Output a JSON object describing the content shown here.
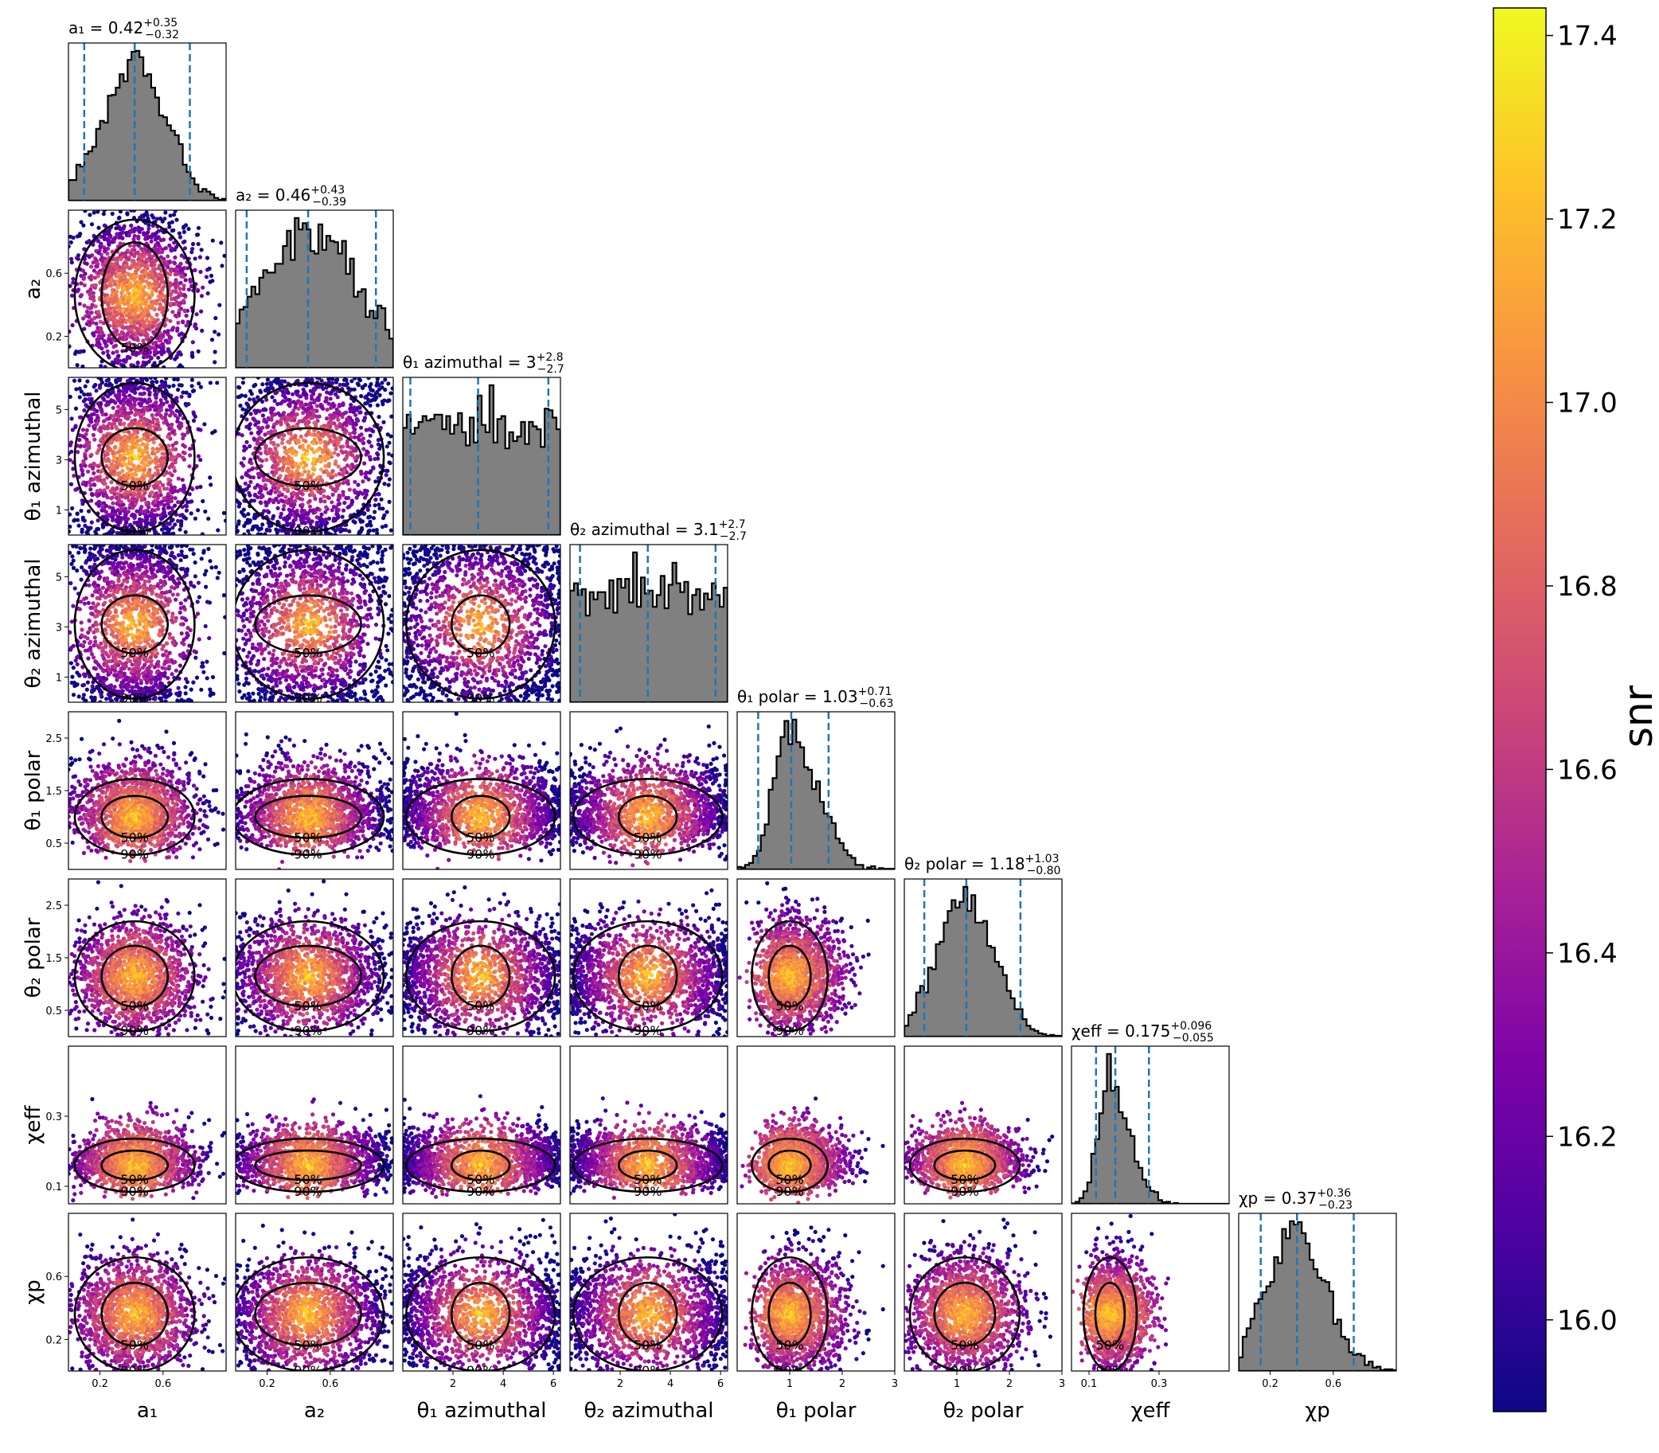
{
  "chart_data": {
    "type": "corner",
    "parameters": [
      {
        "key": "a1",
        "label": "a₁",
        "title": "a₁ = 0.42",
        "median": 0.42,
        "plus": 0.35,
        "minus": 0.32,
        "plus_text": "+0.35",
        "minus_text": "−0.32",
        "range": [
          0.0,
          1.0
        ],
        "ticks": [
          0.2,
          0.6
        ],
        "tick_labels": [
          "0.2",
          "0.6"
        ],
        "dist": "bell",
        "mu": 0.42,
        "sigma": 0.2
      },
      {
        "key": "a2",
        "label": "a₂",
        "title": "a₂ = 0.46",
        "median": 0.46,
        "plus": 0.43,
        "minus": 0.39,
        "plus_text": "+0.43",
        "minus_text": "−0.39",
        "range": [
          0.0,
          1.0
        ],
        "ticks": [
          0.2,
          0.6
        ],
        "tick_labels": [
          "0.2",
          "0.6"
        ],
        "dist": "broad",
        "mu": 0.46,
        "sigma": 0.32
      },
      {
        "key": "theta1_az",
        "label": "θ₁ azimuthal",
        "title": "θ₁ azimuthal = 3",
        "median": 3.0,
        "plus": 2.8,
        "minus": 2.7,
        "plus_text": "+2.8",
        "minus_text": "−2.7",
        "range": [
          0.0,
          6.28
        ],
        "ticks": [
          1,
          3,
          5
        ],
        "tick_labels": [
          "1",
          "3",
          "5"
        ],
        "xticks": [
          2,
          4,
          6
        ],
        "xtick_labels": [
          "2",
          "4",
          "6"
        ],
        "dist": "flat",
        "mu": 3.1,
        "sigma": 2.0
      },
      {
        "key": "theta2_az",
        "label": "θ₂ azimuthal",
        "title": "θ₂ azimuthal = 3.1",
        "median": 3.1,
        "plus": 2.7,
        "minus": 2.7,
        "plus_text": "+2.7",
        "minus_text": "−2.7",
        "range": [
          0.0,
          6.28
        ],
        "ticks": [
          1,
          3,
          5
        ],
        "tick_labels": [
          "1",
          "3",
          "5"
        ],
        "xticks": [
          2,
          4,
          6
        ],
        "xtick_labels": [
          "2",
          "4",
          "6"
        ],
        "dist": "flat",
        "mu": 3.1,
        "sigma": 2.0
      },
      {
        "key": "theta1_pol",
        "label": "θ₁ polar",
        "title": "θ₁ polar = 1.03",
        "median": 1.03,
        "plus": 0.71,
        "minus": 0.63,
        "plus_text": "+0.71",
        "minus_text": "−0.63",
        "range": [
          0.0,
          3.0
        ],
        "ticks": [
          0.5,
          1.5,
          2.5
        ],
        "tick_labels": [
          "0.5",
          "1.5",
          "2.5"
        ],
        "xticks": [
          1,
          2,
          3
        ],
        "xtick_labels": [
          "1",
          "2",
          "3"
        ],
        "dist": "skew",
        "mu": 1.0,
        "sigma": 0.38
      },
      {
        "key": "theta2_pol",
        "label": "θ₂ polar",
        "title": "θ₂ polar = 1.18",
        "median": 1.18,
        "plus": 1.03,
        "minus": 0.8,
        "plus_text": "+1.03",
        "minus_text": "−0.80",
        "range": [
          0.0,
          3.0
        ],
        "ticks": [
          0.5,
          1.5,
          2.5
        ],
        "tick_labels": [
          "0.5",
          "1.5",
          "2.5"
        ],
        "xticks": [
          1,
          2,
          3
        ],
        "xtick_labels": [
          "1",
          "2",
          "3"
        ],
        "dist": "bell",
        "mu": 1.15,
        "sigma": 0.55
      },
      {
        "key": "chi_eff",
        "label": "χeff",
        "title": "χeff = 0.175",
        "median": 0.175,
        "plus": 0.096,
        "minus": 0.055,
        "plus_text": "+0.096",
        "minus_text": "−0.055",
        "range": [
          0.05,
          0.5
        ],
        "ticks": [
          0.1,
          0.3
        ],
        "tick_labels": [
          "0.1",
          "0.3"
        ],
        "dist": "skew",
        "mu": 0.16,
        "sigma": 0.04
      },
      {
        "key": "chi_p",
        "label": "χp",
        "title": "χp = 0.37",
        "median": 0.37,
        "plus": 0.36,
        "minus": 0.23,
        "plus_text": "+0.36",
        "minus_text": "−0.23",
        "range": [
          0.0,
          1.0
        ],
        "ticks": [
          0.2,
          0.6
        ],
        "tick_labels": [
          "0.2",
          "0.6"
        ],
        "dist": "bell",
        "mu": 0.36,
        "sigma": 0.19
      }
    ],
    "contour_levels": [
      "50%",
      "90%"
    ],
    "colorbar": {
      "label": "snr",
      "range": [
        15.9,
        17.43
      ],
      "ticks": [
        16.0,
        16.2,
        16.4,
        16.6,
        16.8,
        17.0,
        17.2,
        17.4
      ],
      "tick_labels": [
        "16.0",
        "16.2",
        "16.4",
        "16.6",
        "16.8",
        "17.0",
        "17.2",
        "17.4"
      ],
      "colormap": "plasma"
    },
    "colors": {
      "histogram_fill": "#808080",
      "histogram_edge": "#000000",
      "quantile_line": "#1f77b4",
      "contour": "#000000"
    }
  }
}
